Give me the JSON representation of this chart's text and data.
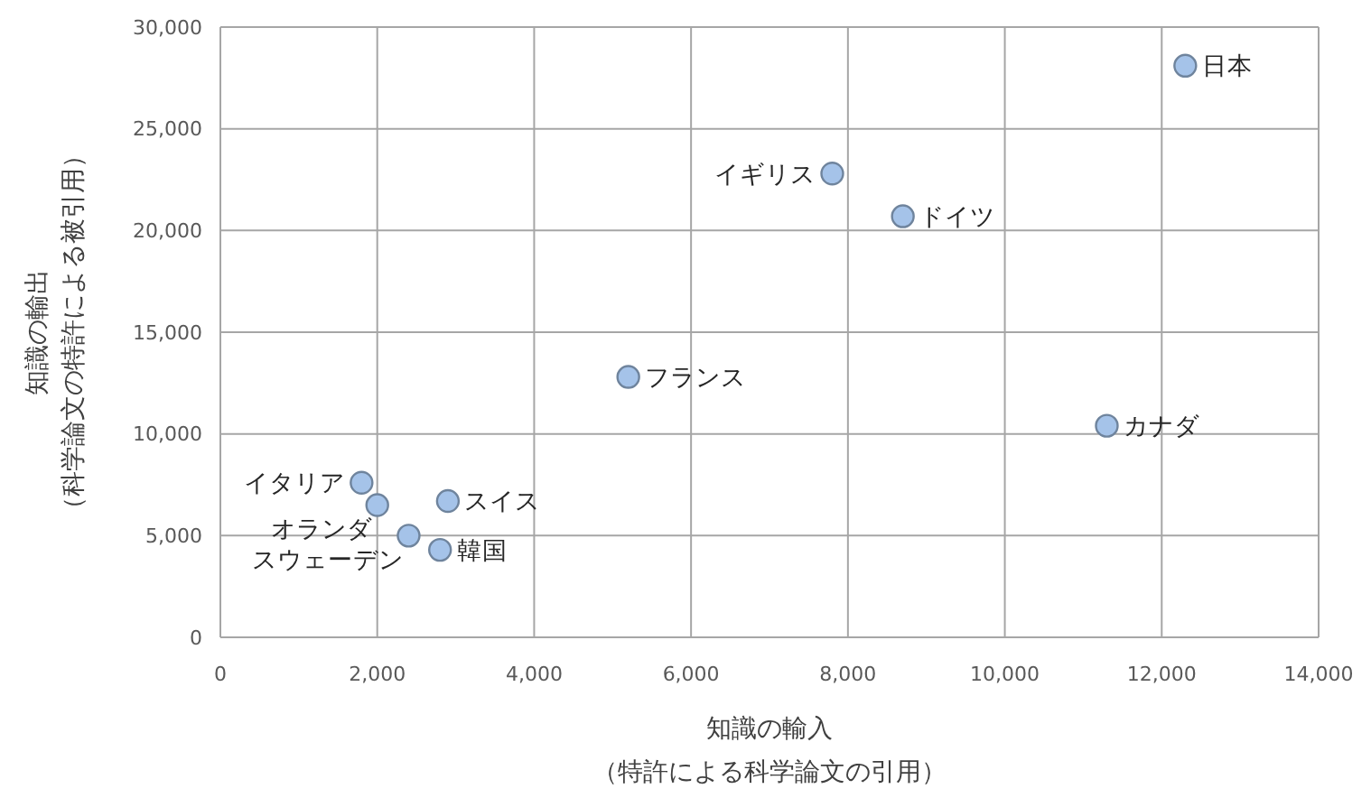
{
  "chart_data": {
    "type": "scatter",
    "xlabel": "知識の輸入（特許による科学論文の引用）",
    "ylabel": "知識の輸出（科学論文の特許による被引用）",
    "x": [
      12300,
      7800,
      8700,
      5200,
      11300,
      1800,
      2000,
      2900,
      2400,
      2800
    ],
    "values": [
      28100,
      22800,
      20700,
      12800,
      10400,
      7600,
      6500,
      6700,
      5000,
      4300
    ],
    "color": "#a5c3e9",
    "marker": "circle",
    "grid": true,
    "xlim": [
      0,
      14000
    ],
    "xticks": [
      0,
      {
        "value": 2000,
        "label": "2,000"
      },
      {
        "value": 4000,
        "label": "4,000"
      },
      {
        "value": 6000,
        "label": "6,000"
      },
      {
        "value": 8000,
        "label": "8,000"
      },
      {
        "value": 10000,
        "label": "10,000"
      },
      {
        "value": 12000,
        "label": "12,000"
      },
      {
        "value": 14000,
        "label": "14,000"
      }
    ],
    "ylim": [
      0,
      30000
    ],
    "yticks": [
      0,
      {
        "value": 5000,
        "label": "5,000"
      },
      {
        "value": 10000,
        "label": "10,000"
      },
      {
        "value": 15000,
        "label": "15,000"
      },
      {
        "value": 20000,
        "label": "20,000"
      },
      {
        "value": 25000,
        "label": "25,000"
      },
      {
        "value": 30000,
        "label": "30,000"
      }
    ],
    "annotations": [
      {
        "text": "日本",
        "x": 12300,
        "y": 28100
      },
      {
        "text": "イギリス",
        "x": 7800,
        "y": 22800
      },
      {
        "text": "ドイツ",
        "x": 8700,
        "y": 20700
      },
      {
        "text": "フランス",
        "x": 5200,
        "y": 12800
      },
      {
        "text": "カナダ",
        "x": 11300,
        "y": 10400
      },
      {
        "text": "イタリア",
        "x": 1800,
        "y": 7600
      },
      {
        "text": "オランダ",
        "x": 2000,
        "y": 6500
      },
      {
        "text": "スイス",
        "x": 2900,
        "y": 6700
      },
      {
        "text": "スウェーデン",
        "x": 2400,
        "y": 5000
      },
      {
        "text": "韓国",
        "x": 2800,
        "y": 4300
      }
    ]
  }
}
